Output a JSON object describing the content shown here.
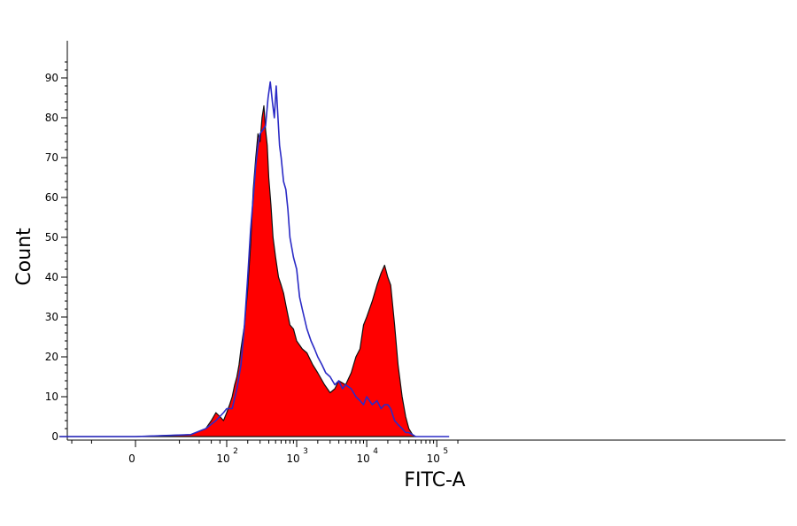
{
  "chart_data": {
    "type": "area",
    "xlabel": "FITC-A",
    "ylabel": "Count",
    "ylim": [
      0,
      95
    ],
    "xscale": "biexponential",
    "grid": false,
    "legend": "none",
    "yticks": [
      {
        "value": 0,
        "label": "0"
      },
      {
        "value": 10,
        "label": "10"
      },
      {
        "value": 20,
        "label": "20"
      },
      {
        "value": 30,
        "label": "30"
      },
      {
        "value": 40,
        "label": "40"
      },
      {
        "value": 50,
        "label": "50"
      },
      {
        "value": 60,
        "label": "60"
      },
      {
        "value": 70,
        "label": "70"
      },
      {
        "value": 80,
        "label": "80"
      },
      {
        "value": 90,
        "label": "90"
      }
    ],
    "xticks": [
      {
        "value": 0,
        "base": "0",
        "exp": ""
      },
      {
        "value": 100,
        "base": "10",
        "exp": "2"
      },
      {
        "value": 1000,
        "base": "10",
        "exp": "3"
      },
      {
        "value": 10000,
        "base": "10",
        "exp": "4"
      },
      {
        "value": 100000,
        "base": "10",
        "exp": "5"
      }
    ],
    "series": [
      {
        "style": "filled",
        "color": "#ff0000",
        "outline": "#111111",
        "x": [
          -60,
          0,
          30,
          50,
          60,
          70,
          80,
          90,
          100,
          110,
          120,
          130,
          140,
          150,
          160,
          180,
          200,
          220,
          240,
          260,
          280,
          300,
          320,
          340,
          360,
          380,
          400,
          430,
          460,
          500,
          550,
          600,
          650,
          700,
          800,
          900,
          1000,
          1200,
          1400,
          1700,
          2000,
          2500,
          3000,
          3500,
          4000,
          5000,
          6000,
          7000,
          8000,
          9000,
          10000,
          12000,
          14000,
          16000,
          18000,
          20000,
          22000,
          25000,
          28000,
          32000,
          36000,
          40000,
          45000,
          50000
        ],
        "y": [
          0,
          0,
          0.5,
          2,
          4,
          6,
          5,
          4,
          6,
          8,
          10,
          13,
          15,
          18,
          22,
          28,
          37,
          48,
          62,
          70,
          76,
          74,
          80,
          83,
          77,
          73,
          65,
          58,
          50,
          45,
          40,
          38,
          36,
          33,
          28,
          27,
          24,
          22,
          21,
          18,
          16,
          13,
          11,
          12,
          14,
          13,
          16,
          20,
          22,
          28,
          30,
          34,
          38,
          41,
          43,
          40,
          38,
          28,
          18,
          10,
          5,
          2,
          0.5,
          0
        ]
      },
      {
        "style": "outline",
        "color": "#2b2bc6",
        "x": [
          -60,
          0,
          30,
          50,
          70,
          90,
          100,
          120,
          140,
          160,
          180,
          200,
          220,
          240,
          260,
          280,
          300,
          330,
          360,
          390,
          420,
          450,
          480,
          510,
          540,
          570,
          600,
          650,
          700,
          750,
          800,
          900,
          1000,
          1100,
          1200,
          1400,
          1600,
          1800,
          2000,
          2300,
          2600,
          3000,
          3500,
          4000,
          4500,
          5000,
          6000,
          7000,
          8000,
          9000,
          10000,
          12000,
          14000,
          16000,
          18000,
          20000,
          22000,
          25000,
          28000,
          32000,
          36000,
          40000,
          45000,
          50000,
          70000,
          100000,
          150000
        ],
        "y": [
          0,
          0,
          0.5,
          2,
          4,
          6,
          7,
          7,
          12,
          18,
          28,
          40,
          52,
          60,
          68,
          73,
          76,
          77,
          78,
          85,
          89,
          84,
          80,
          88,
          80,
          73,
          70,
          64,
          62,
          57,
          50,
          45,
          42,
          35,
          32,
          27,
          24,
          22,
          20,
          18,
          16,
          15,
          13,
          14,
          12,
          13,
          12,
          10,
          9,
          8,
          10,
          8,
          9,
          7,
          8,
          8,
          7,
          4,
          3,
          2,
          1,
          1,
          0.5,
          0,
          0,
          0,
          0
        ]
      }
    ]
  }
}
